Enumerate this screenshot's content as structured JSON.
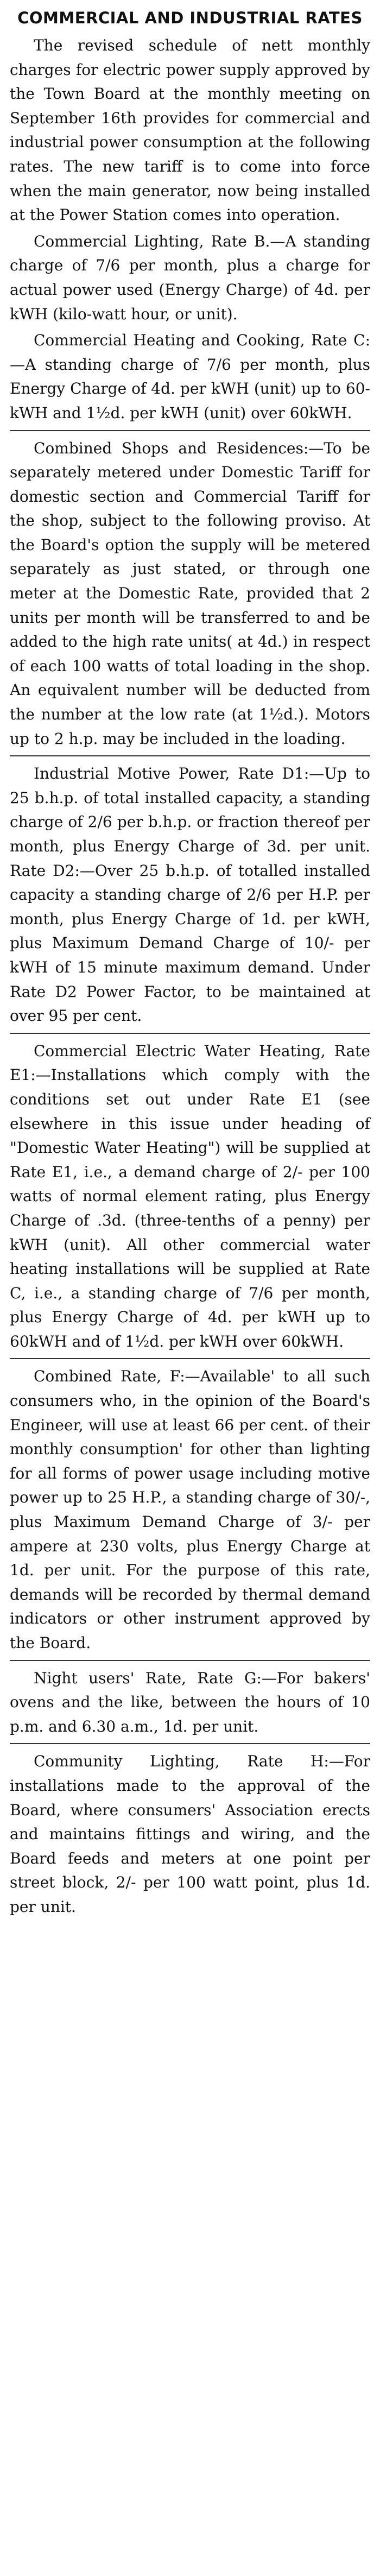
{
  "article": {
    "headline": "COMMERCIAL AND INDUSTRIAL RATES",
    "paragraphs": [
      "The revised schedule of nett monthly charges for electric power supply approved by the Town Board at the monthly meeting on September 16th provides for commercial and industrial power consumption at the following rates. The new tariff is to come into force when the main generator, now being installed at the Power Station comes into operation.",
      "Commercial Lighting, Rate B.—A standing charge of 7/6 per month, plus a charge for actual power used (Energy Charge) of 4d. per kWH (kilo-watt hour, or unit).",
      "Commercial Heating and Cooking, Rate C:—A standing charge of 7/6 per month, plus Energy Charge of 4d. per kWH (unit) up to 60-kWH and 1½d. per kWH (unit) over 60kWH.",
      "Combined Shops and Residences:—To be separately metered under Domestic Tariff for domestic section and Commercial Tariff for the shop, subject to the following proviso. At the Board's option the supply will be metered separately as just stated, or through one meter at the Domestic Rate, provided that 2 units per month will be transferred to and be added to the high rate units( at 4d.) in respect of each 100 watts of total loading in the shop. An equivalent number will be deducted from the number at the low rate (at 1½d.). Motors up to 2 h.p. may be included in the loading.",
      "Industrial Motive Power, Rate D1:—Up to 25 b.h.p. of total installed capacity, a standing charge of 2/6 per b.h.p. or fraction thereof per month, plus Energy Charge of 3d. per unit. Rate D2:—Over 25 b.h.p. of totalled installed capacity a standing charge of 2/6 per H.P. per month, plus Energy Charge of 1d. per kWH, plus Maximum Demand Charge of 10/- per kWH of 15 minute maximum demand. Under Rate D2 Power Factor, to be maintained at over 95 per cent.",
      "Commercial Electric Water Heating, Rate E1:—Installations which comply with the conditions set out under Rate E1 (see elsewhere in this issue under heading of \"Domestic Water Heating\") will be supplied at Rate E1, i.e., a demand charge of 2/- per 100 watts of normal element rating, plus Energy Charge of .3d. (three-tenths of a penny) per kWH (unit). All other commercial water heating installations will be supplied at Rate C, i.e., a standing charge of 7/6 per month, plus Energy Charge of 4d. per kWH up to 60kWH and of 1½d. per kWH over 60kWH.",
      "Combined Rate, F:—Available' to all such consumers who, in the opinion of the Board's Engineer, will use at least 66 per cent. of their monthly consumption' for other than lighting for all forms of power usage including motive power up to 25 H.P., a standing charge of 30/-, plus Maximum Demand Charge of 3/- per ampere at 230 volts, plus Energy Charge at 1d. per unit. For the purpose of this rate, demands will be recorded by thermal demand indicators or other instrument approved by the Board.",
      "Night users' Rate, Rate G:—For bakers' ovens and the like, between the hours of 10 p.m. and 6.30 a.m., 1d. per unit.",
      "Community Lighting, Rate H:—For installations made to the approval of the Board, where consumers' Association erects and maintains fittings and wiring, and the Board feeds and meters at one point per street block, 2/- per 100 watt point, plus 1d. per unit."
    ]
  }
}
